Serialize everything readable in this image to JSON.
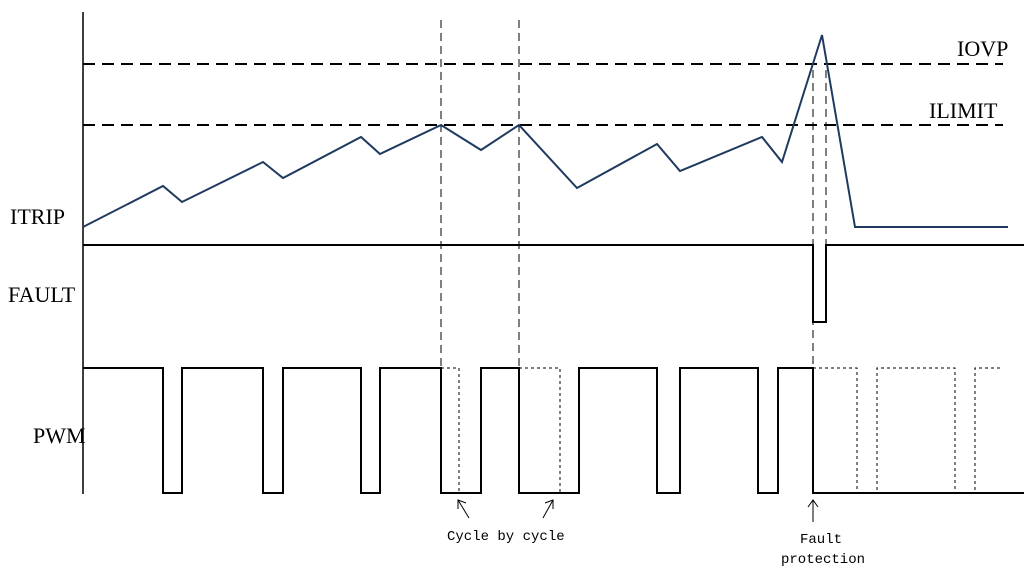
{
  "signals": {
    "itrip": "ITRIP",
    "fault": "FAULT",
    "pwm": "PWM"
  },
  "thresholds": {
    "iovp": "IOVP",
    "ilimit": "ILIMIT"
  },
  "annotations": {
    "cycle_by_cycle": "Cycle by cycle",
    "fault_line1": "Fault",
    "fault_line2": "protection"
  },
  "colors": {
    "current_trace": "#1f3a5f",
    "lines": "#000000"
  }
}
